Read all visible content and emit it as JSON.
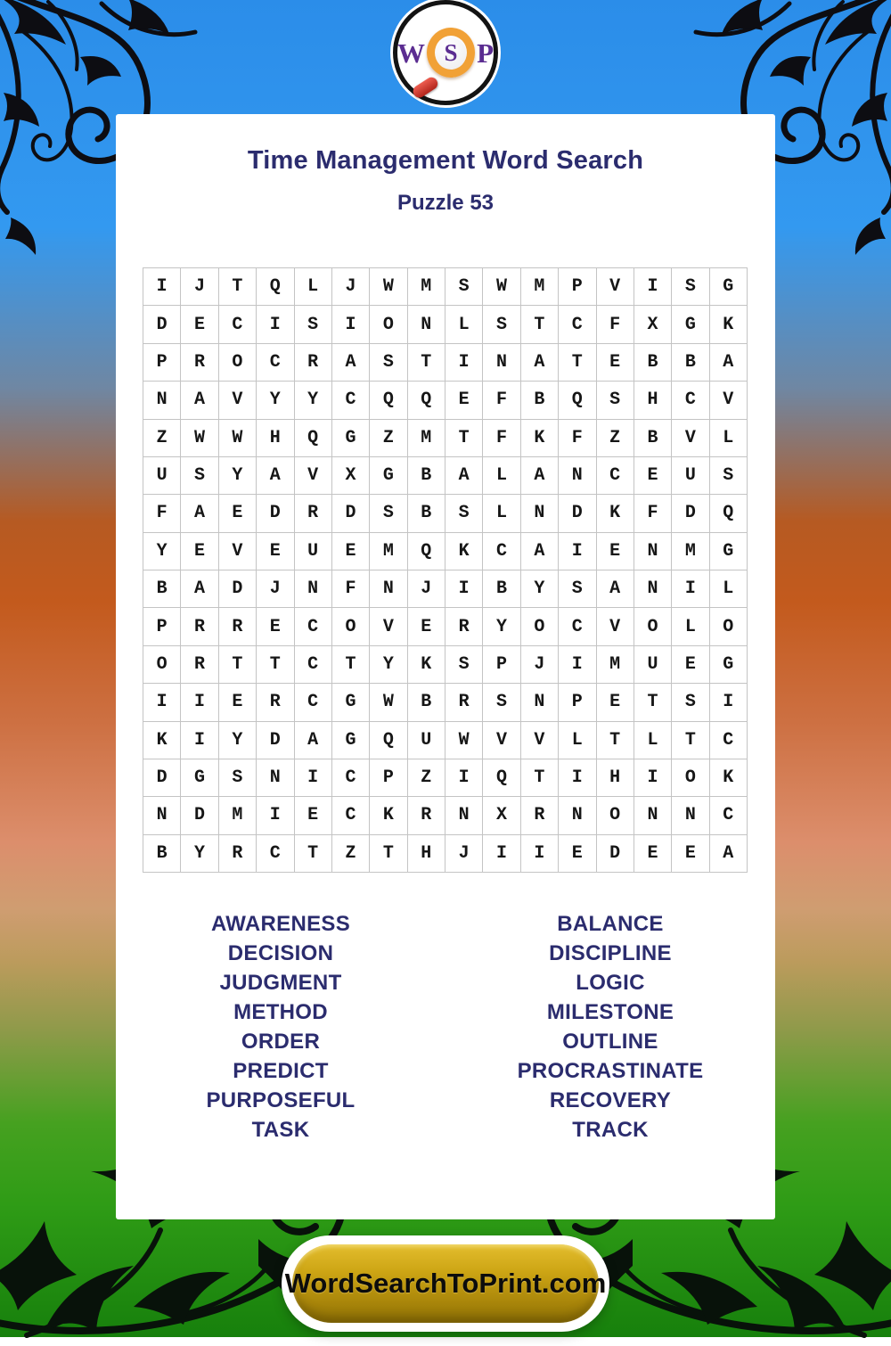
{
  "page": {
    "title": "Time Management Word Search",
    "subtitle": "Puzzle 53"
  },
  "logo": {
    "letters": [
      "W",
      "S",
      "P"
    ]
  },
  "grid": {
    "rows": [
      "IJTQLJWMSWMPVISG",
      "DECISIONLSTCFXGK",
      "PROCRASTINATEBBA",
      "NAVYYCQQEFBQSHCV",
      "ZWWHQGZMTFKFZBVL",
      "USYAVXGBALANCEUS",
      "FAEDRDSBSLNDKFDQ",
      "YEVEUEMQKCAIENMG",
      "BADJNFNJIBYSANIL",
      "PRRECOVERYOCVOLO",
      "ORTTCTYKSPJIMUEG",
      "IIERCGWBRSNPETSI",
      "KIYDAGQUWVVLTLTC",
      "DGSNICPZIQTIHIOK",
      "NDMIECKRNXRNONNC",
      "BYRCTZTHJIIEDEEA"
    ]
  },
  "words": {
    "left": [
      "AWARENESS",
      "DECISION",
      "JUDGMENT",
      "METHOD",
      "ORDER",
      "PREDICT",
      "PURPOSEFUL",
      "TASK"
    ],
    "right": [
      "BALANCE",
      "DISCIPLINE",
      "LOGIC",
      "MILESTONE",
      "OUTLINE",
      "PROCRASTINATE",
      "RECOVERY",
      "TRACK"
    ]
  },
  "footer": {
    "site_label": "WordSearchToPrint.com"
  },
  "colors": {
    "heading_navy": "#2b2c6e",
    "grid_letter": "#161616",
    "grid_border": "#c4c4c4",
    "logo_purple": "#5b2d91",
    "lens_orange": "#f1a136",
    "handle_red": "#c93325",
    "button_gold": "#cda514",
    "bg_blue": "#3399f0",
    "bg_orange": "#c35a1d",
    "bg_salmon": "#dc8e6c",
    "bg_green": "#2f9c16"
  }
}
